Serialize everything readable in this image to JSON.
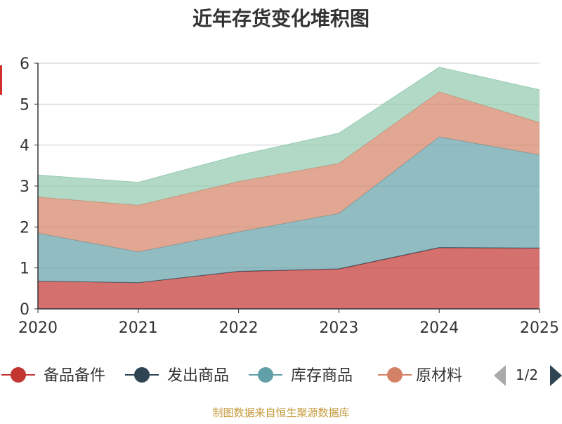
{
  "chart_data": {
    "type": "area",
    "title": "近年存货变化堆积图",
    "x": [
      "2020",
      "2021",
      "2022",
      "2023",
      "2024",
      "2025"
    ],
    "ylim": [
      0,
      6
    ],
    "yticks": [
      0,
      1,
      2,
      3,
      4,
      5,
      6
    ],
    "grid": true,
    "legend_position": "bottom",
    "stacked": true,
    "series": [
      {
        "name": "备品备件",
        "color": "#c23531",
        "values": [
          0.68,
          0.64,
          0.91,
          0.97,
          1.49,
          1.48
        ]
      },
      {
        "name": "发出商品",
        "color": "#2f4554",
        "values": [
          0.0,
          0.0,
          0.01,
          0.01,
          0.01,
          0.01
        ]
      },
      {
        "name": "库存商品",
        "color": "#61a0a8",
        "values": [
          1.17,
          0.75,
          0.96,
          1.35,
          2.7,
          2.27
        ]
      },
      {
        "name": "原材料",
        "color": "#d48265",
        "values": [
          0.88,
          1.14,
          1.23,
          1.22,
          1.1,
          0.79
        ]
      },
      {
        "name": "",
        "color": "#91c7ae",
        "values": [
          0.54,
          0.56,
          0.64,
          0.74,
          0.6,
          0.8
        ]
      }
    ],
    "legend_page": "1/2",
    "ylabel_color": "#d03030"
  },
  "footer": {
    "source": "制图数据来自恒生聚源数据库"
  }
}
